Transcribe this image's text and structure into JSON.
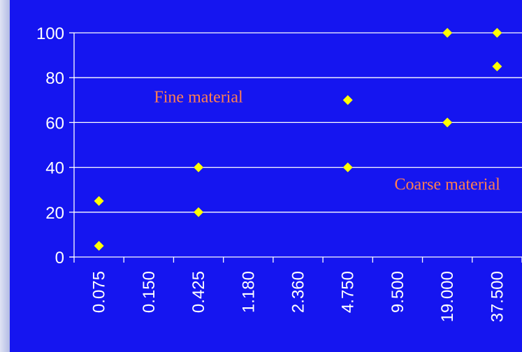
{
  "chart_data": {
    "type": "scatter",
    "title": "",
    "xlabel": "",
    "ylabel": "",
    "categories": [
      "0.075",
      "0.150",
      "0.425",
      "1.180",
      "2.360",
      "4.750",
      "9.500",
      "19.000",
      "37.500"
    ],
    "ylim": [
      0,
      100
    ],
    "y_ticks": [
      "0",
      "20",
      "40",
      "60",
      "80",
      "100"
    ],
    "grid": true,
    "series": [
      {
        "points": [
          {
            "x": "0.075",
            "y": 25
          },
          {
            "x": "0.075",
            "y": 5
          },
          {
            "x": "0.425",
            "y": 40
          },
          {
            "x": "0.425",
            "y": 20
          },
          {
            "x": "4.750",
            "y": 70
          },
          {
            "x": "4.750",
            "y": 40
          },
          {
            "x": "19.000",
            "y": 100
          },
          {
            "x": "19.000",
            "y": 60
          },
          {
            "x": "37.500",
            "y": 100
          },
          {
            "x": "37.500",
            "y": 85
          }
        ]
      }
    ],
    "annotations": [
      {
        "text": "Fine material",
        "x": "0.425",
        "y": 69
      },
      {
        "text": "Coarse material",
        "x": "19.000",
        "y": 30
      }
    ],
    "colors": {
      "background": "#1515f0",
      "marker": "#ffff00",
      "gridline": "#ffffff",
      "text": "#ffffff",
      "annotation": "#ff7f50",
      "left_strip": "#b7bfe6"
    }
  }
}
